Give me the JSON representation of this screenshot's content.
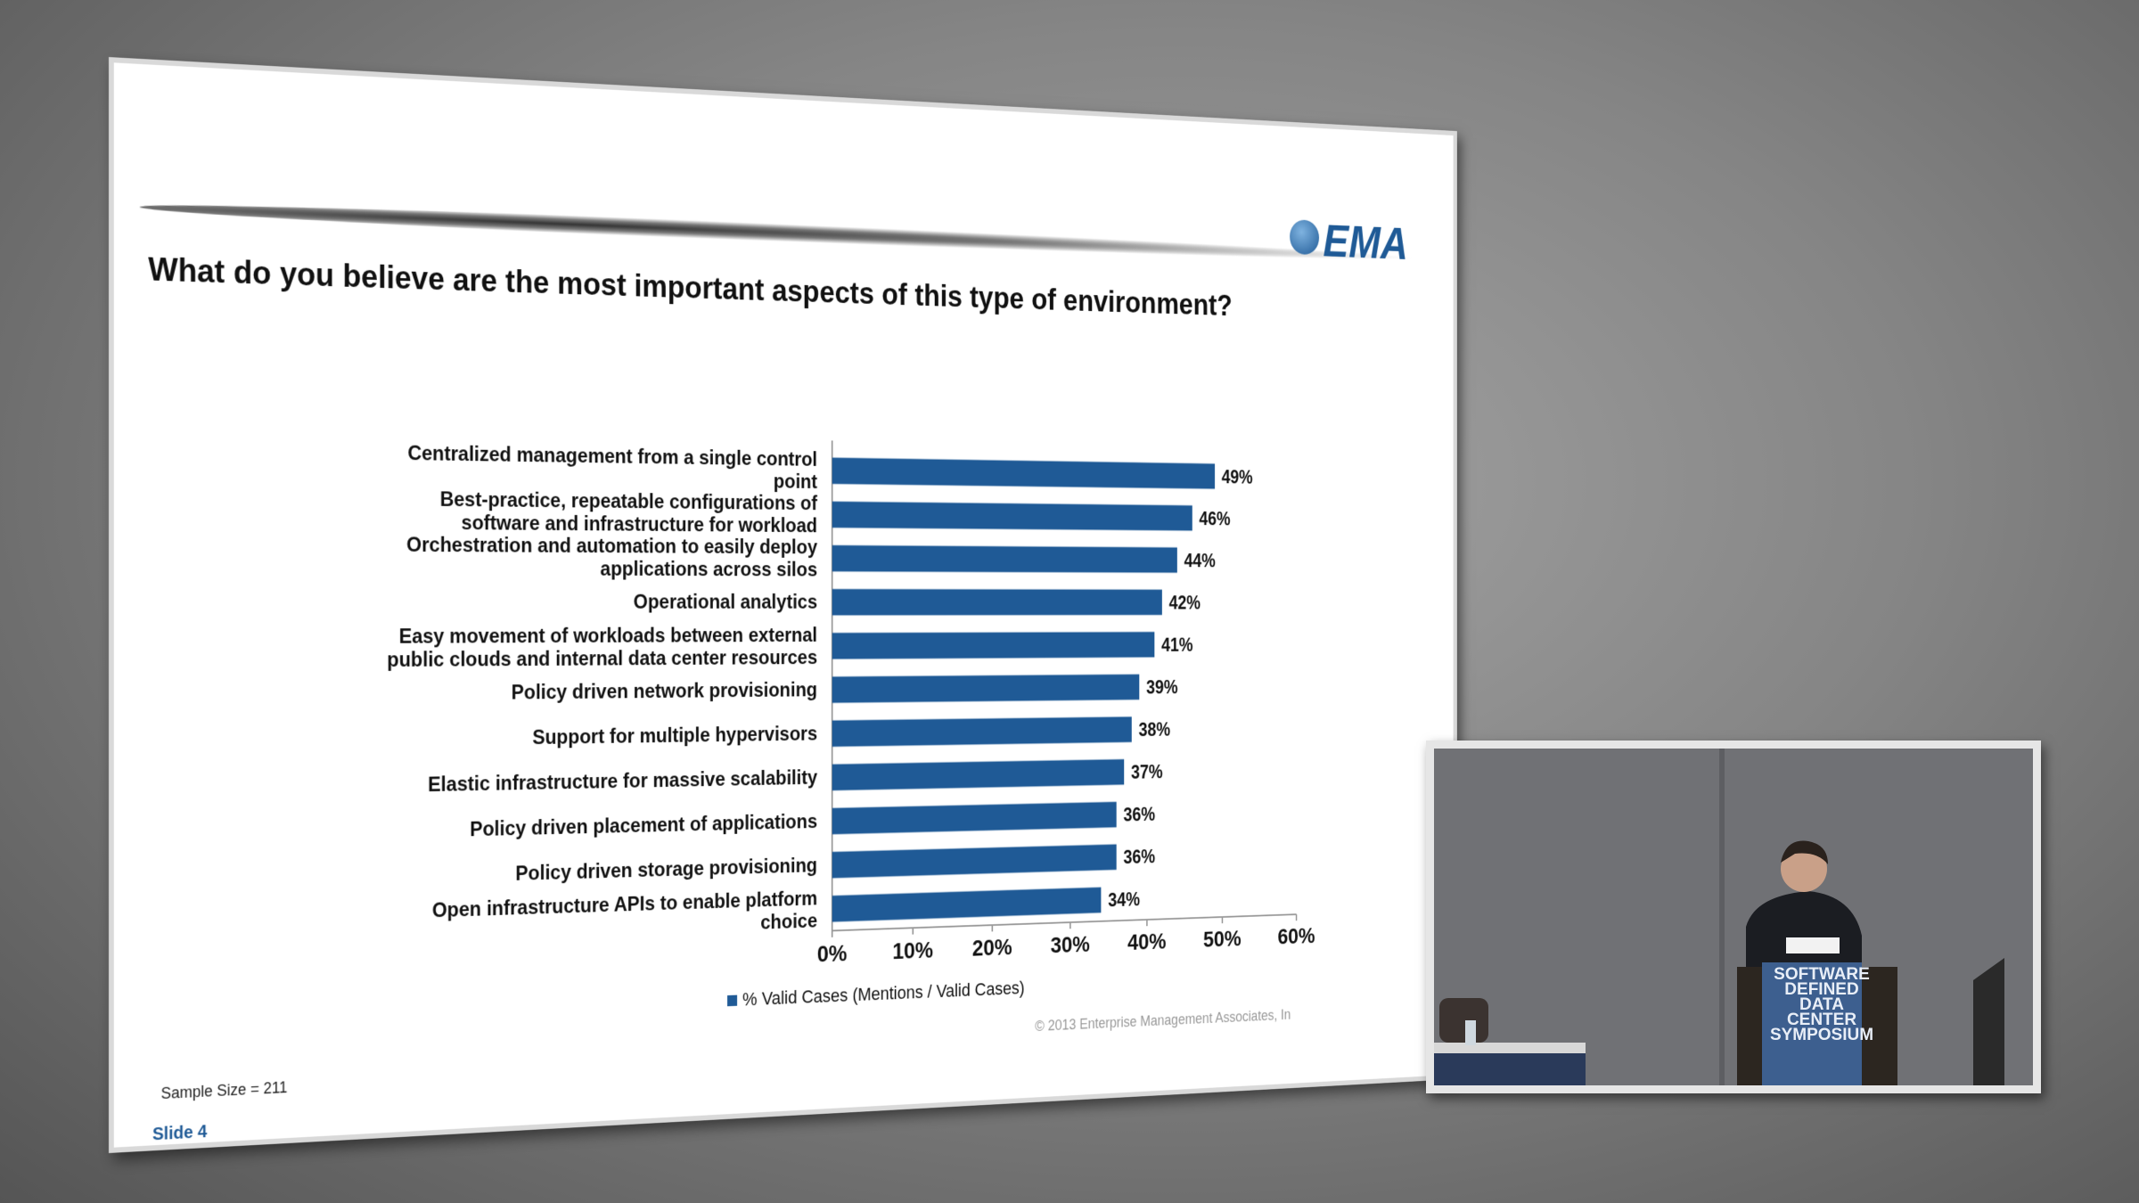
{
  "chart_data": {
    "type": "hbar",
    "title": "What do you believe are the most important aspects of this type of environment?",
    "categories": [
      "Centralized management from a single control point",
      "Best-practice, repeatable configurations of software and infrastructure for workload",
      "Orchestration and automation to easily deploy applications across silos",
      "Operational analytics",
      "Easy movement of workloads between external public clouds and internal data center resources",
      "Policy driven network provisioning",
      "Support for multiple hypervisors",
      "Elastic infrastructure for massive scalability",
      "Policy driven placement of applications",
      "Policy driven storage provisioning",
      "Open infrastructure APIs to enable platform choice"
    ],
    "series": [
      {
        "name": "% Valid Cases (Mentions / Valid Cases)",
        "color": "#1f5a96",
        "values": [
          49,
          46,
          44,
          42,
          41,
          39,
          38,
          37,
          36,
          36,
          34
        ],
        "value_labels": [
          "49%",
          "46%",
          "44%",
          "42%",
          "41%",
          "39%",
          "38%",
          "37%",
          "36%",
          "36%",
          "34%"
        ]
      }
    ],
    "xlim": [
      0,
      60
    ],
    "xticks": [
      {
        "value": 0,
        "label": "0%"
      },
      {
        "value": 10,
        "label": "10%"
      },
      {
        "value": 20,
        "label": "20%"
      },
      {
        "value": 30,
        "label": "30%"
      },
      {
        "value": 40,
        "label": "40%"
      },
      {
        "value": 50,
        "label": "50%"
      },
      {
        "value": 60,
        "label": "60%"
      }
    ],
    "legend": "bottom"
  },
  "slide": {
    "logo": "EMA",
    "sample_size": "Sample Size = 211",
    "slide_number": "Slide  4",
    "copyright": "© 2013 Enterprise Management Associates, In"
  },
  "video": {
    "sign": [
      "SOFTWARE",
      "DEFINED",
      "DATA CENTER",
      "SYMPOSIUM"
    ]
  }
}
